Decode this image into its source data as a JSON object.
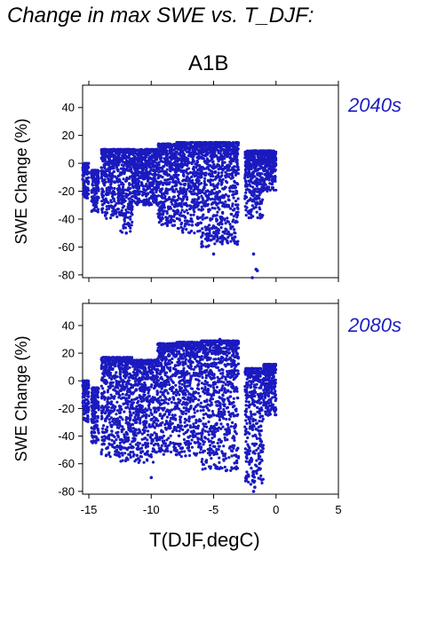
{
  "figure": {
    "title": "Change in max SWE vs. T_DJF:",
    "scenario": "A1B",
    "xlabel": "T(DJF,degC)"
  },
  "colors": {
    "points": "#1a1abf",
    "period_label": "#1f1fbf"
  },
  "chart_data": [
    {
      "type": "scatter",
      "period": "2040s",
      "ylabel": "SWE Change (%)",
      "xlim": [
        -15.5,
        5
      ],
      "ylim": [
        -82,
        56
      ],
      "xticks": [
        -15,
        -10,
        -5,
        0,
        5
      ],
      "yticks": [
        40,
        20,
        0,
        -20,
        -40,
        -60,
        -80
      ],
      "clusters": [
        {
          "x": [
            -15.5,
            -15.0
          ],
          "y": [
            -25,
            0
          ]
        },
        {
          "x": [
            -14.8,
            -14.2
          ],
          "y": [
            -35,
            -5
          ]
        },
        {
          "x": [
            -14.0,
            -12.5
          ],
          "y": [
            -40,
            10
          ]
        },
        {
          "x": [
            -12.5,
            -11.5
          ],
          "y": [
            -50,
            10
          ]
        },
        {
          "x": [
            -11.5,
            -9.5
          ],
          "y": [
            -30,
            10
          ]
        },
        {
          "x": [
            -9.5,
            -8.0
          ],
          "y": [
            -45,
            14
          ]
        },
        {
          "x": [
            -8.0,
            -6.0
          ],
          "y": [
            -50,
            15
          ]
        },
        {
          "x": [
            -6.0,
            -5.0
          ],
          "y": [
            -60,
            15
          ]
        },
        {
          "x": [
            -5.0,
            -3.0
          ],
          "y": [
            -58,
            15
          ]
        },
        {
          "x": [
            -2.5,
            -1.0
          ],
          "y": [
            -40,
            9
          ]
        },
        {
          "x": [
            -1.0,
            0.0
          ],
          "y": [
            -20,
            9
          ]
        }
      ],
      "points": [
        {
          "x": -1.8,
          "y": -65
        },
        {
          "x": -1.6,
          "y": -76
        },
        {
          "x": -1.5,
          "y": -77
        },
        {
          "x": -1.9,
          "y": -82
        },
        {
          "x": -5.0,
          "y": -65
        },
        {
          "x": -3.1,
          "y": -58
        },
        {
          "x": -12.0,
          "y": -50
        }
      ]
    },
    {
      "type": "scatter",
      "period": "2080s",
      "ylabel": "SWE Change (%)",
      "xlim": [
        -15.5,
        5
      ],
      "ylim": [
        -82,
        56
      ],
      "xticks": [
        -15,
        -10,
        -5,
        0,
        5
      ],
      "yticks": [
        40,
        20,
        0,
        -20,
        -40,
        -60,
        -80
      ],
      "clusters": [
        {
          "x": [
            -15.5,
            -15.0
          ],
          "y": [
            -30,
            0
          ]
        },
        {
          "x": [
            -14.8,
            -14.2
          ],
          "y": [
            -45,
            -5
          ]
        },
        {
          "x": [
            -14.0,
            -12.5
          ],
          "y": [
            -55,
            17
          ]
        },
        {
          "x": [
            -12.5,
            -11.5
          ],
          "y": [
            -60,
            17
          ]
        },
        {
          "x": [
            -11.5,
            -9.5
          ],
          "y": [
            -60,
            15
          ]
        },
        {
          "x": [
            -9.5,
            -8.0
          ],
          "y": [
            -55,
            27
          ]
        },
        {
          "x": [
            -8.0,
            -6.0
          ],
          "y": [
            -55,
            28
          ]
        },
        {
          "x": [
            -6.0,
            -5.0
          ],
          "y": [
            -65,
            29
          ]
        },
        {
          "x": [
            -5.0,
            -3.0
          ],
          "y": [
            -65,
            29
          ]
        },
        {
          "x": [
            -2.5,
            -1.0
          ],
          "y": [
            -75,
            9
          ]
        },
        {
          "x": [
            -1.0,
            0.0
          ],
          "y": [
            -25,
            12
          ]
        }
      ],
      "points": [
        {
          "x": -1.8,
          "y": -80
        },
        {
          "x": -1.7,
          "y": -77
        },
        {
          "x": -10.0,
          "y": -70
        },
        {
          "x": -4.0,
          "y": -65
        },
        {
          "x": -9.3,
          "y": 27
        },
        {
          "x": -4.5,
          "y": 30
        }
      ]
    }
  ]
}
